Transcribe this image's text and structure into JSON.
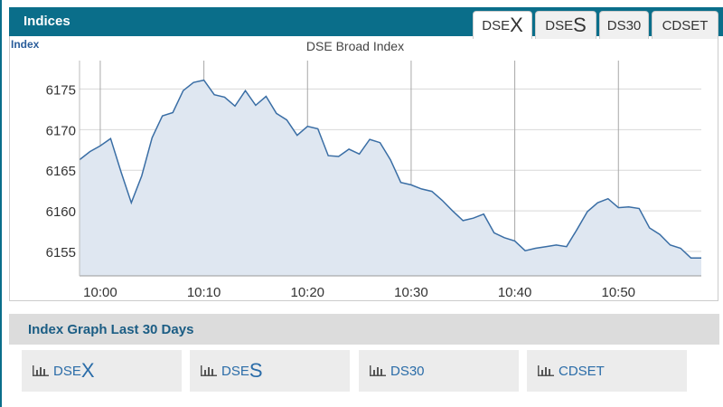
{
  "header": {
    "title": "Indices",
    "tabs": [
      [
        "DSE",
        "X"
      ],
      [
        "DSE",
        "S"
      ],
      [
        "DS30"
      ],
      [
        "CDSET"
      ]
    ]
  },
  "chart_data": {
    "type": "line",
    "title": "DSE Broad Index",
    "y_label": "Index",
    "color": "#3a6ea5",
    "fill": "#dfe7f1",
    "x": [
      "09:58",
      "09:59",
      "10:00",
      "10:01",
      "10:02",
      "10:03",
      "10:04",
      "10:05",
      "10:06",
      "10:07",
      "10:08",
      "10:09",
      "10:10",
      "10:11",
      "10:12",
      "10:13",
      "10:14",
      "10:15",
      "10:16",
      "10:17",
      "10:18",
      "10:19",
      "10:20",
      "10:21",
      "10:22",
      "10:23",
      "10:24",
      "10:25",
      "10:26",
      "10:27",
      "10:28",
      "10:29",
      "10:30",
      "10:31",
      "10:32",
      "10:33",
      "10:34",
      "10:35",
      "10:36",
      "10:37",
      "10:38",
      "10:39",
      "10:40",
      "10:41",
      "10:42",
      "10:43",
      "10:44",
      "10:45",
      "10:46",
      "10:47",
      "10:48",
      "10:49",
      "10:50",
      "10:51",
      "10:52",
      "10:53",
      "10:54",
      "10:55",
      "10:56",
      "10:57",
      "10:58"
    ],
    "values": [
      6166.3,
      6167.3,
      6168.0,
      6168.9,
      6164.8,
      6161.0,
      6164.3,
      6169.0,
      6171.7,
      6172.1,
      6174.8,
      6175.8,
      6176.1,
      6174.3,
      6174.0,
      6172.9,
      6174.8,
      6173.0,
      6174.1,
      6172.0,
      6171.2,
      6169.3,
      6170.4,
      6170.1,
      6166.8,
      6166.7,
      6167.6,
      6167.0,
      6168.8,
      6168.4,
      6166.3,
      6163.5,
      6163.2,
      6162.7,
      6162.4,
      6161.3,
      6160.0,
      6158.8,
      6159.1,
      6159.6,
      6157.3,
      6156.7,
      6156.3,
      6155.1,
      6155.4,
      6155.6,
      6155.8,
      6155.6,
      6157.7,
      6159.9,
      6161.0,
      6161.5,
      6160.4,
      6160.5,
      6160.3,
      6157.9,
      6157.1,
      6155.8,
      6155.4,
      6154.2,
      6154.2
    ],
    "xlim": [
      "09:58",
      "10:58"
    ],
    "xticks": [
      "10:00",
      "10:10",
      "10:20",
      "10:30",
      "10:40",
      "10:50"
    ],
    "ylim": [
      6152,
      6178.5
    ],
    "yticks": [
      6155,
      6160,
      6165,
      6170,
      6175
    ],
    "grid": true
  },
  "footer": {
    "title": "Index Graph Last 30 Days",
    "buttons": [
      [
        "DSE",
        "X"
      ],
      [
        "DSE",
        "S"
      ],
      [
        "DS30"
      ],
      [
        "CDSET"
      ]
    ]
  }
}
